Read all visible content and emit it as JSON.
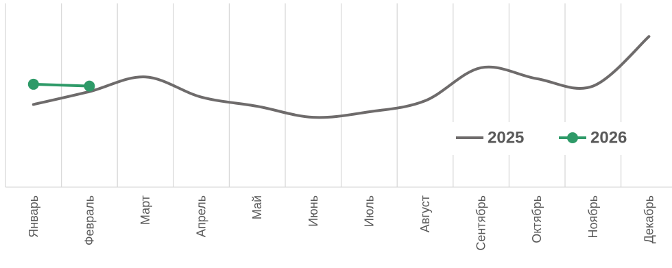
{
  "chart_data": {
    "type": "line",
    "categories": [
      "Январь",
      "Февраль",
      "Март",
      "Апрель",
      "Май",
      "Июнь",
      "Июль",
      "Август",
      "Сентябрь",
      "Октябрь",
      "Ноябрь",
      "Декабрь"
    ],
    "series": [
      {
        "name": "2025",
        "color": "#6e6b6b",
        "values": [
          45,
          52,
          60,
          49,
          44,
          38,
          41,
          47,
          65,
          59,
          55,
          82
        ],
        "smooth": true,
        "markers": false
      },
      {
        "name": "2026",
        "color": "#2e9a68",
        "values": [
          56,
          55,
          null,
          null,
          null,
          null,
          null,
          null,
          null,
          null,
          null,
          null
        ],
        "smooth": false,
        "markers": true
      }
    ],
    "ylim": [
      0,
      100
    ]
  }
}
